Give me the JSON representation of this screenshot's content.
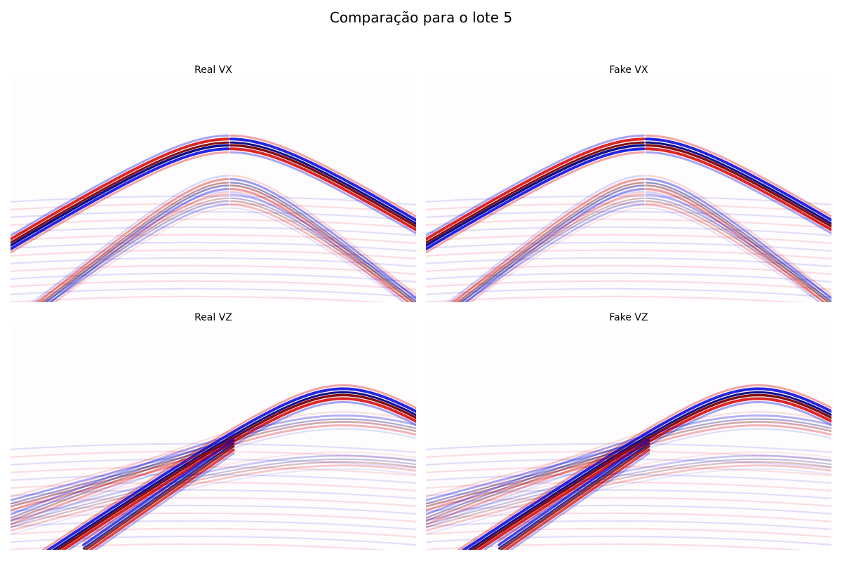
{
  "figure": {
    "title": "Comparação para o lote 5"
  },
  "colors": {
    "positive": "#d70000",
    "positive_peak": "#7a0000",
    "negative": "#0000dc",
    "negative_peak": "#000080",
    "background": "#fffcfe"
  },
  "chart_data": [
    {
      "type": "heatmap",
      "title": "Real VX",
      "colormap": "seismic",
      "axes": "off",
      "grid": false,
      "legend": "none",
      "events": [
        {
          "kind": "hyperbola",
          "apex_x": 0.54,
          "apex_t": 0.29,
          "slope": 0.46,
          "polarity_flip_at_apex": true,
          "strength": 1.0
        },
        {
          "kind": "hyperbola",
          "apex_x": 0.54,
          "apex_t": 0.47,
          "slope": 0.62,
          "polarity_flip_at_apex": true,
          "strength": 0.45
        },
        {
          "kind": "hyperbola",
          "apex_x": 0.54,
          "apex_t": 0.54,
          "slope": 0.55,
          "polarity_flip_at_apex": true,
          "strength": 0.3
        }
      ]
    },
    {
      "type": "heatmap",
      "title": "Fake VX",
      "colormap": "seismic",
      "axes": "off",
      "grid": false,
      "legend": "none",
      "events": [
        {
          "kind": "hyperbola",
          "apex_x": 0.54,
          "apex_t": 0.29,
          "slope": 0.46,
          "polarity_flip_at_apex": true,
          "strength": 1.0
        },
        {
          "kind": "hyperbola",
          "apex_x": 0.54,
          "apex_t": 0.47,
          "slope": 0.62,
          "polarity_flip_at_apex": true,
          "strength": 0.45
        },
        {
          "kind": "hyperbola",
          "apex_x": 0.54,
          "apex_t": 0.54,
          "slope": 0.55,
          "polarity_flip_at_apex": true,
          "strength": 0.3
        }
      ]
    },
    {
      "type": "heatmap",
      "title": "Real VZ",
      "colormap": "seismic",
      "axes": "off",
      "grid": false,
      "legend": "none",
      "events": [
        {
          "kind": "hyperbola",
          "apex_x": 0.82,
          "apex_t": 0.3,
          "slope": 0.5,
          "polarity_flip_at_apex": false,
          "strength": 1.0
        },
        {
          "kind": "linear",
          "x0": 0.18,
          "t0": 1.0,
          "x1": 0.55,
          "t1": 0.53,
          "strength": 0.85
        },
        {
          "kind": "linear",
          "x0": 0.0,
          "t0": 0.8,
          "x1": 0.55,
          "t1": 0.53,
          "strength": 0.4
        },
        {
          "kind": "hyperbola",
          "apex_x": 0.82,
          "apex_t": 0.42,
          "slope": 0.3,
          "polarity_flip_at_apex": false,
          "strength": 0.35
        },
        {
          "kind": "hyperbola",
          "apex_x": 0.82,
          "apex_t": 0.6,
          "slope": 0.22,
          "polarity_flip_at_apex": false,
          "strength": 0.25
        }
      ]
    },
    {
      "type": "heatmap",
      "title": "Fake VZ",
      "colormap": "seismic",
      "axes": "off",
      "grid": false,
      "legend": "none",
      "events": [
        {
          "kind": "hyperbola",
          "apex_x": 0.82,
          "apex_t": 0.3,
          "slope": 0.5,
          "polarity_flip_at_apex": false,
          "strength": 1.0
        },
        {
          "kind": "linear",
          "x0": 0.18,
          "t0": 1.0,
          "x1": 0.55,
          "t1": 0.53,
          "strength": 0.85
        },
        {
          "kind": "linear",
          "x0": 0.0,
          "t0": 0.8,
          "x1": 0.55,
          "t1": 0.53,
          "strength": 0.4
        },
        {
          "kind": "hyperbola",
          "apex_x": 0.82,
          "apex_t": 0.42,
          "slope": 0.3,
          "polarity_flip_at_apex": false,
          "strength": 0.35
        },
        {
          "kind": "hyperbola",
          "apex_x": 0.82,
          "apex_t": 0.6,
          "slope": 0.22,
          "polarity_flip_at_apex": false,
          "strength": 0.25
        }
      ]
    }
  ]
}
